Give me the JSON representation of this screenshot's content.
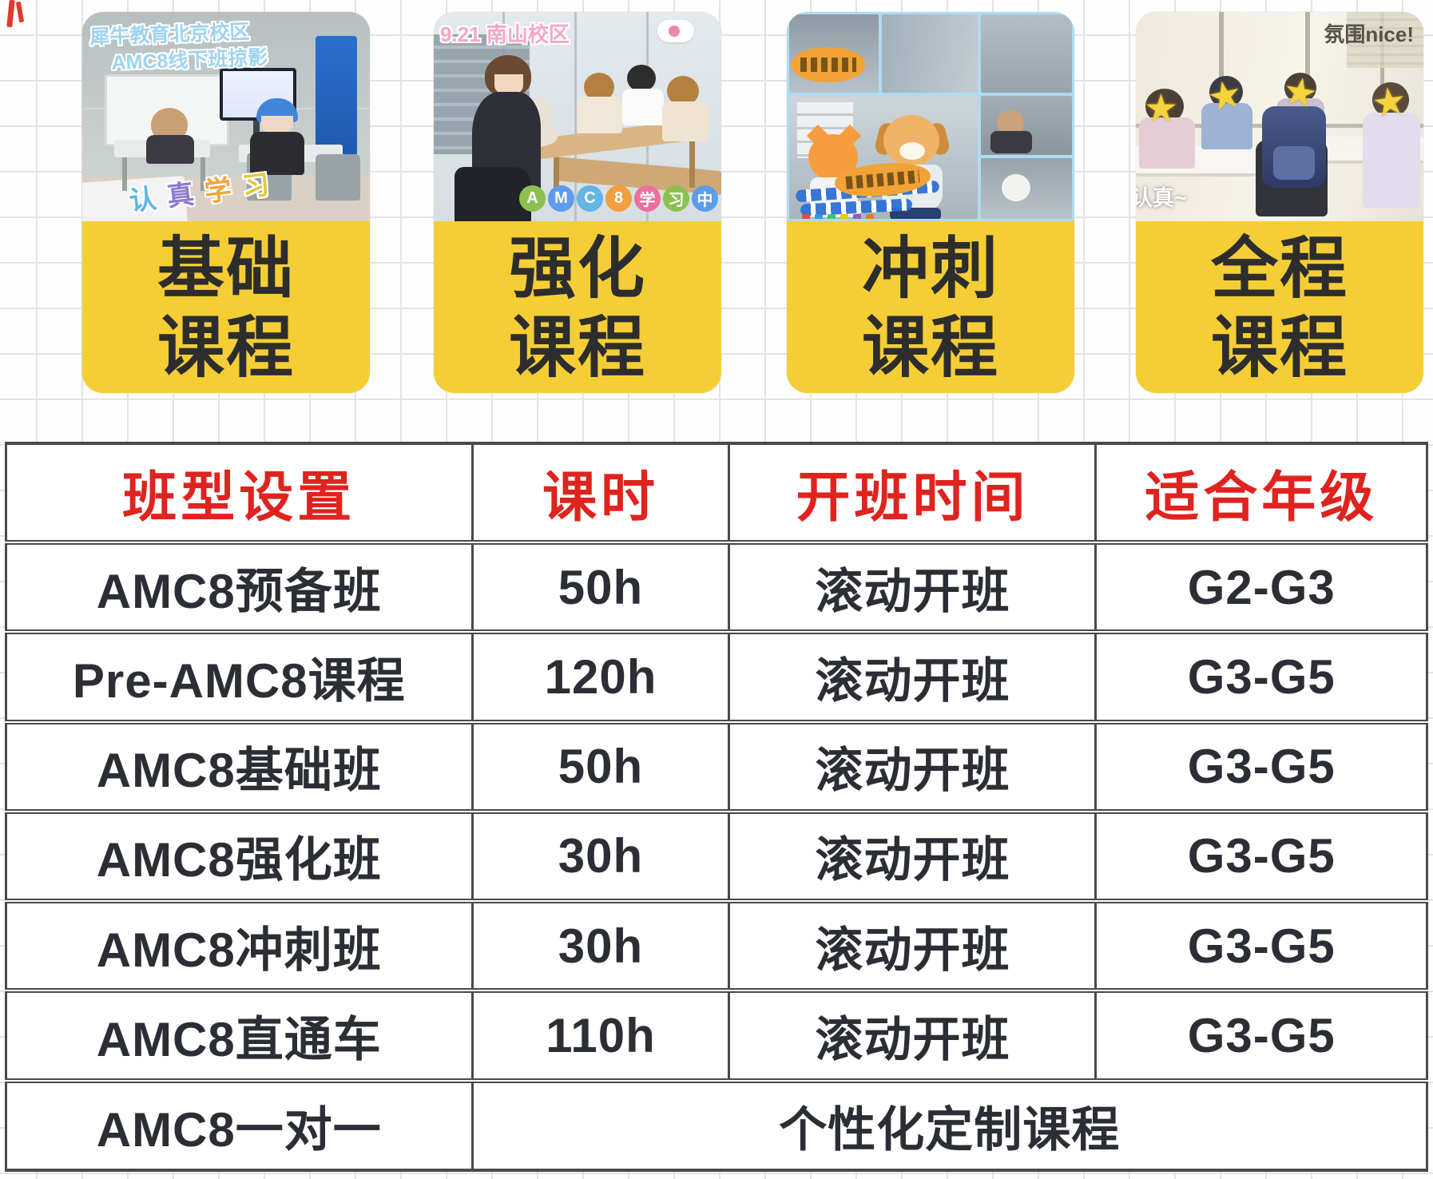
{
  "cards": [
    {
      "label_line1": "基础",
      "label_line2": "课程",
      "overlay_line1": "犀牛教育北京校区",
      "overlay_line2": "AMC8线下班掠影",
      "sticker": [
        "认",
        "真",
        "学",
        "习"
      ]
    },
    {
      "label_line1": "强化",
      "label_line2": "课程",
      "overlay_top": "9.21 南山校区",
      "badge": [
        "A",
        "M",
        "C",
        "8",
        "学",
        "习",
        "中"
      ]
    },
    {
      "label_line1": "冲刺",
      "label_line2": "课程"
    },
    {
      "label_line1": "全程",
      "label_line2": "课程",
      "overlay_top": "氛围nice!",
      "overlay_bottom": "认真~"
    }
  ],
  "table": {
    "headers": [
      "班型设置",
      "课时",
      "开班时间",
      "适合年级"
    ],
    "rows": [
      [
        "AMC8预备班",
        "50h",
        "滚动开班",
        "G2-G3"
      ],
      [
        "Pre-AMC8课程",
        "120h",
        "滚动开班",
        "G3-G5"
      ],
      [
        "AMC8基础班",
        "50h",
        "滚动开班",
        "G3-G5"
      ],
      [
        "AMC8强化班",
        "30h",
        "滚动开班",
        "G3-G5"
      ],
      [
        "AMC8冲刺班",
        "30h",
        "滚动开班",
        "G3-G5"
      ],
      [
        "AMC8直通车",
        "110h",
        "滚动开班",
        "G3-G5"
      ]
    ],
    "last_row": {
      "label": "AMC8一对一",
      "value": "个性化定制课程"
    }
  },
  "colors": {
    "accent_yellow": "#F5CE36",
    "header_red": "#DF231E",
    "text_dark": "#2B2E34",
    "table_border": "#4A4A4A",
    "grid_line": "#E4E4E4"
  }
}
